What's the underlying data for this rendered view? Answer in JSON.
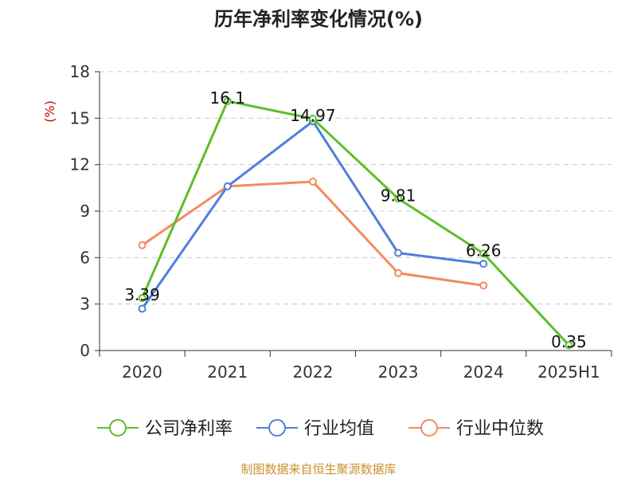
{
  "chart_data": {
    "type": "line",
    "title": "历年净利率变化情况(%)",
    "ylabel": "(%)",
    "xlabel": "",
    "categories": [
      "2020",
      "2021",
      "2022",
      "2023",
      "2024",
      "2025H1"
    ],
    "yticks": [
      "0",
      "3",
      "6",
      "9",
      "12",
      "15",
      "18"
    ],
    "ylim": [
      0,
      18
    ],
    "grid": true,
    "legend_position": "bottom",
    "series": [
      {
        "name": "公司净利率",
        "color": "#5cbf2a",
        "values": [
          3.39,
          16.1,
          14.97,
          9.81,
          6.26,
          0.35
        ],
        "data_labels": [
          "3.39",
          "16.1",
          "14.97",
          "9.81",
          "6.26",
          "0.35"
        ]
      },
      {
        "name": "行业均值",
        "color": "#4f7fdc",
        "values": [
          2.7,
          10.6,
          14.8,
          6.3,
          5.6,
          null
        ]
      },
      {
        "name": "行业中位数",
        "color": "#f48b5c",
        "values": [
          6.8,
          10.6,
          10.9,
          5.0,
          4.2,
          null
        ]
      }
    ]
  },
  "footer": {
    "source": "制图数据来自恒生聚源数据库"
  },
  "colors": {
    "axis": "#333333",
    "grid": "#c8c8c8",
    "ylabel": "#cc0000"
  }
}
